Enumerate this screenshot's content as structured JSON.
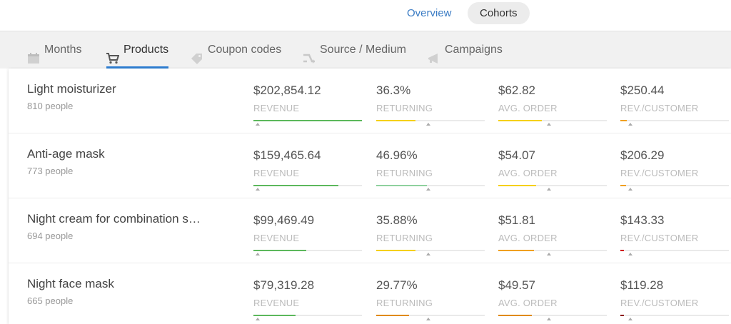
{
  "view_tabs": {
    "overview": "Overview",
    "cohorts": "Cohorts"
  },
  "group_tabs": [
    {
      "label": "Months",
      "icon": "calendar-icon",
      "active": false
    },
    {
      "label": "Products",
      "icon": "cart-icon",
      "active": true
    },
    {
      "label": "Coupon codes",
      "icon": "tag-icon",
      "active": false
    },
    {
      "label": "Source / Medium",
      "icon": "source-arrows-icon",
      "active": false
    },
    {
      "label": "Campaigns",
      "icon": "megaphone-icon",
      "active": false
    }
  ],
  "metric_labels": {
    "revenue": "REVENUE",
    "returning": "RETURNING",
    "avg_order": "AVG. ORDER",
    "rev_customer": "REV./CUSTOMER"
  },
  "colors": {
    "accent": "#2f7fd3",
    "green": "#5cb85c",
    "light_green": "#8fd19e",
    "yellow": "#f5d000",
    "orange": "#f0a020",
    "dark_orange": "#e08a10",
    "red": "#d0021b",
    "dark_red": "#8b0000"
  },
  "rows": [
    {
      "name": "Light moisturizer",
      "people": "810 people",
      "revenue": {
        "value": "$202,854.12",
        "bar_level": 1.0,
        "bar_color": "#5cb85c",
        "marker": 0.02
      },
      "returning": {
        "value": "36.3%",
        "bar_level": 0.36,
        "bar_color": "#f5d000",
        "marker": 0.46
      },
      "avg_order": {
        "value": "$62.82",
        "bar_level": 0.4,
        "bar_color": "#f5d000",
        "marker": 0.45
      },
      "rev_customer": {
        "value": "$250.44",
        "bar_level": 0.06,
        "bar_color": "#f0a020",
        "marker": 0.07
      }
    },
    {
      "name": "Anti-age mask",
      "people": "773 people",
      "revenue": {
        "value": "$159,465.64",
        "bar_level": 0.78,
        "bar_color": "#5cb85c",
        "marker": 0.02
      },
      "returning": {
        "value": "46.96%",
        "bar_level": 0.47,
        "bar_color": "#8fd19e",
        "marker": 0.46
      },
      "avg_order": {
        "value": "$54.07",
        "bar_level": 0.35,
        "bar_color": "#f5d000",
        "marker": 0.45
      },
      "rev_customer": {
        "value": "$206.29",
        "bar_level": 0.05,
        "bar_color": "#f0a020",
        "marker": 0.07
      }
    },
    {
      "name": "Night cream for combination s…",
      "people": "694 people",
      "revenue": {
        "value": "$99,469.49",
        "bar_level": 0.49,
        "bar_color": "#5cb85c",
        "marker": 0.02
      },
      "returning": {
        "value": "35.88%",
        "bar_level": 0.36,
        "bar_color": "#f5d000",
        "marker": 0.46
      },
      "avg_order": {
        "value": "$51.81",
        "bar_level": 0.33,
        "bar_color": "#f0a020",
        "marker": 0.45
      },
      "rev_customer": {
        "value": "$143.33",
        "bar_level": 0.03,
        "bar_color": "#d0021b",
        "marker": 0.07
      }
    },
    {
      "name": "Night face mask",
      "people": "665 people",
      "revenue": {
        "value": "$79,319.28",
        "bar_level": 0.39,
        "bar_color": "#5cb85c",
        "marker": 0.02
      },
      "returning": {
        "value": "29.77%",
        "bar_level": 0.3,
        "bar_color": "#e08a10",
        "marker": 0.46
      },
      "avg_order": {
        "value": "$49.57",
        "bar_level": 0.31,
        "bar_color": "#e08a10",
        "marker": 0.45
      },
      "rev_customer": {
        "value": "$119.28",
        "bar_level": 0.03,
        "bar_color": "#8b0000",
        "marker": 0.07
      }
    }
  ]
}
